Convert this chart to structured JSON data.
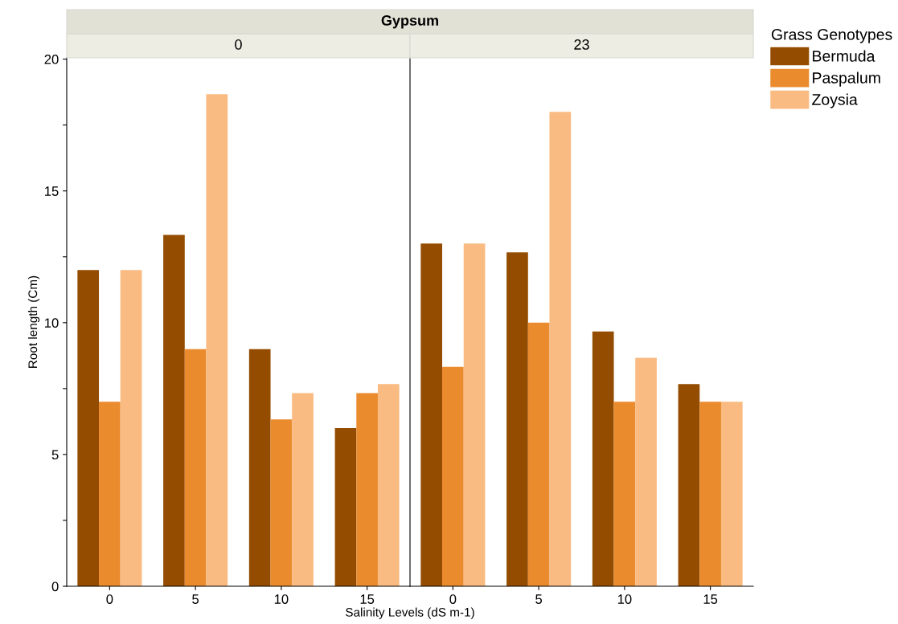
{
  "chart_data": [
    {
      "type": "bar",
      "title": "0",
      "annotations": [
        "Gypsum"
      ],
      "xlabel": "Salinity Levels (dS m-1)",
      "ylabel": "Root length (Cm)",
      "categories": [
        "0",
        "5",
        "10",
        "15"
      ],
      "series": [
        {
          "color": "#934c00",
          "values": [
            12,
            13.33,
            9,
            6
          ]
        },
        {
          "color": "#ea8b2e",
          "values": [
            7,
            9,
            6.33,
            7.33
          ]
        },
        {
          "color": "#f9bb82",
          "values": [
            12,
            18.67,
            7.33,
            7.67
          ]
        }
      ],
      "ylim": [
        0,
        20.05
      ],
      "yticks": [
        0,
        {
          "value": 2.5,
          "label": null
        },
        5,
        {
          "value": 7.5,
          "label": null
        },
        10,
        {
          "value": 12.5,
          "label": null
        },
        15,
        {
          "value": 17.5,
          "label": null
        },
        20
      ],
      "grid": false,
      "legend": false
    },
    {
      "type": "bar",
      "title": "23",
      "categories": [
        "0",
        "5",
        "10",
        "15"
      ],
      "series": [
        {
          "name": "Bermuda",
          "color": "#934c00",
          "values": [
            13,
            12.67,
            9.67,
            7.67
          ]
        },
        {
          "name": "Paspalum",
          "color": "#ea8b2e",
          "values": [
            8.33,
            10,
            7,
            7
          ]
        },
        {
          "name": "Zoysia",
          "color": "#f9bb82",
          "values": [
            13,
            18,
            8.67,
            7
          ]
        }
      ],
      "ylim": [
        0,
        20.05
      ],
      "tick_labels": "x",
      "grid": false,
      "legend": "right",
      "legend_title": "Grass Genotypes"
    }
  ]
}
